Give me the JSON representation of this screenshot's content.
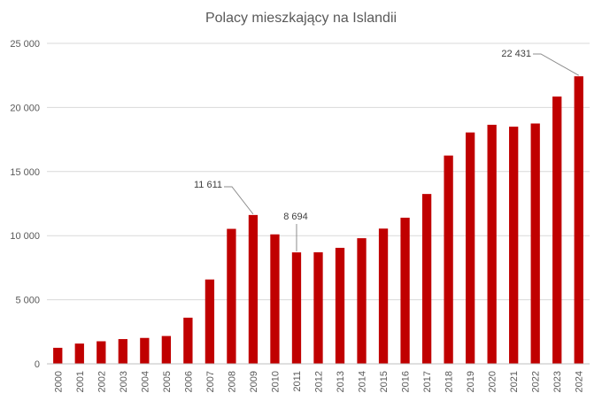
{
  "chart_data": {
    "type": "bar",
    "title": "Polacy mieszkający na Islandii",
    "xlabel": "",
    "ylabel": "",
    "ylim": [
      0,
      25000
    ],
    "yticks": [
      0,
      5000,
      10000,
      15000,
      20000,
      25000
    ],
    "ytick_labels": [
      "0",
      "5 000",
      "10 000",
      "15 000",
      "20 000",
      "25 000"
    ],
    "grid": true,
    "bar_color": "#C00000",
    "categories": [
      "2000",
      "2001",
      "2002",
      "2003",
      "2004",
      "2005",
      "2006",
      "2007",
      "2008",
      "2009",
      "2010",
      "2011",
      "2012",
      "2013",
      "2014",
      "2015",
      "2016",
      "2017",
      "2018",
      "2019",
      "2020",
      "2021",
      "2022",
      "2023",
      "2024"
    ],
    "values": [
      1250,
      1580,
      1760,
      1930,
      2020,
      2170,
      3600,
      6580,
      10530,
      11611,
      10100,
      8694,
      8700,
      9050,
      9800,
      10550,
      11400,
      13250,
      16250,
      18050,
      18650,
      18500,
      18750,
      20850,
      22431
    ],
    "annotations": [
      {
        "category": "2009",
        "value": 11611,
        "label": "11 611"
      },
      {
        "category": "2011",
        "value": 8694,
        "label": "8 694"
      },
      {
        "category": "2024",
        "value": 22431,
        "label": "22 431"
      }
    ]
  }
}
